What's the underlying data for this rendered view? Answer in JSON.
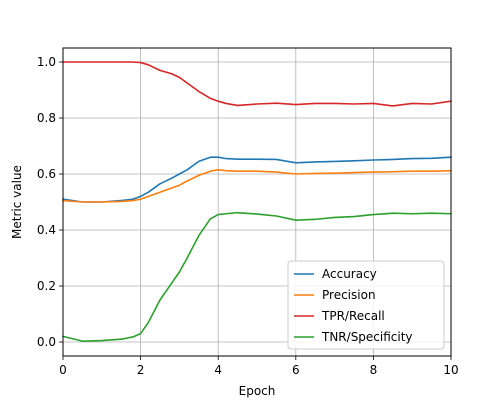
{
  "chart_data": {
    "type": "line",
    "title": "",
    "xlabel": "Epoch",
    "ylabel": "Metric value",
    "xlim": [
      0,
      10
    ],
    "ylim": [
      -0.05,
      1.05
    ],
    "xticks": [
      0,
      2,
      4,
      6,
      8,
      10
    ],
    "xtick_labels": [
      "0",
      "2",
      "4",
      "6",
      "8",
      "10"
    ],
    "yticks": [
      0.0,
      0.2,
      0.4,
      0.6,
      0.8,
      1.0
    ],
    "ytick_labels": [
      "0.0",
      "0.2",
      "0.4",
      "0.6",
      "0.8",
      "1.0"
    ],
    "grid": true,
    "legend_position": "lower-right",
    "x": [
      0,
      0.5,
      1,
      1.5,
      1.8,
      2,
      2.2,
      2.5,
      2.8,
      3,
      3.2,
      3.5,
      3.8,
      4,
      4.2,
      4.5,
      5,
      5.5,
      6,
      6.5,
      7,
      7.5,
      8,
      8.5,
      9,
      9.5,
      10
    ],
    "series": [
      {
        "name": "Accuracy",
        "color": "#1f77b4",
        "values": [
          0.51,
          0.5,
          0.5,
          0.505,
          0.51,
          0.52,
          0.535,
          0.565,
          0.585,
          0.6,
          0.615,
          0.645,
          0.66,
          0.66,
          0.655,
          0.653,
          0.653,
          0.652,
          0.64,
          0.643,
          0.645,
          0.647,
          0.65,
          0.652,
          0.655,
          0.656,
          0.66
        ]
      },
      {
        "name": "Precision",
        "color": "#ff7f0e",
        "values": [
          0.505,
          0.5,
          0.5,
          0.502,
          0.505,
          0.51,
          0.52,
          0.535,
          0.55,
          0.56,
          0.575,
          0.595,
          0.61,
          0.615,
          0.612,
          0.61,
          0.61,
          0.607,
          0.6,
          0.602,
          0.603,
          0.605,
          0.607,
          0.608,
          0.61,
          0.61,
          0.612
        ]
      },
      {
        "name": "TPR/Recall",
        "color": "#d62728",
        "values": [
          1.0,
          1.0,
          1.0,
          1.0,
          1.0,
          0.998,
          0.99,
          0.97,
          0.958,
          0.945,
          0.925,
          0.895,
          0.87,
          0.86,
          0.852,
          0.845,
          0.85,
          0.853,
          0.848,
          0.852,
          0.852,
          0.85,
          0.852,
          0.843,
          0.852,
          0.85,
          0.86
        ]
      },
      {
        "name": "TNR/Specificity",
        "color": "#2ca02c",
        "values": [
          0.02,
          0.003,
          0.005,
          0.01,
          0.018,
          0.03,
          0.07,
          0.15,
          0.21,
          0.25,
          0.3,
          0.38,
          0.44,
          0.455,
          0.458,
          0.462,
          0.457,
          0.45,
          0.435,
          0.438,
          0.445,
          0.448,
          0.455,
          0.46,
          0.458,
          0.46,
          0.458
        ]
      }
    ]
  }
}
